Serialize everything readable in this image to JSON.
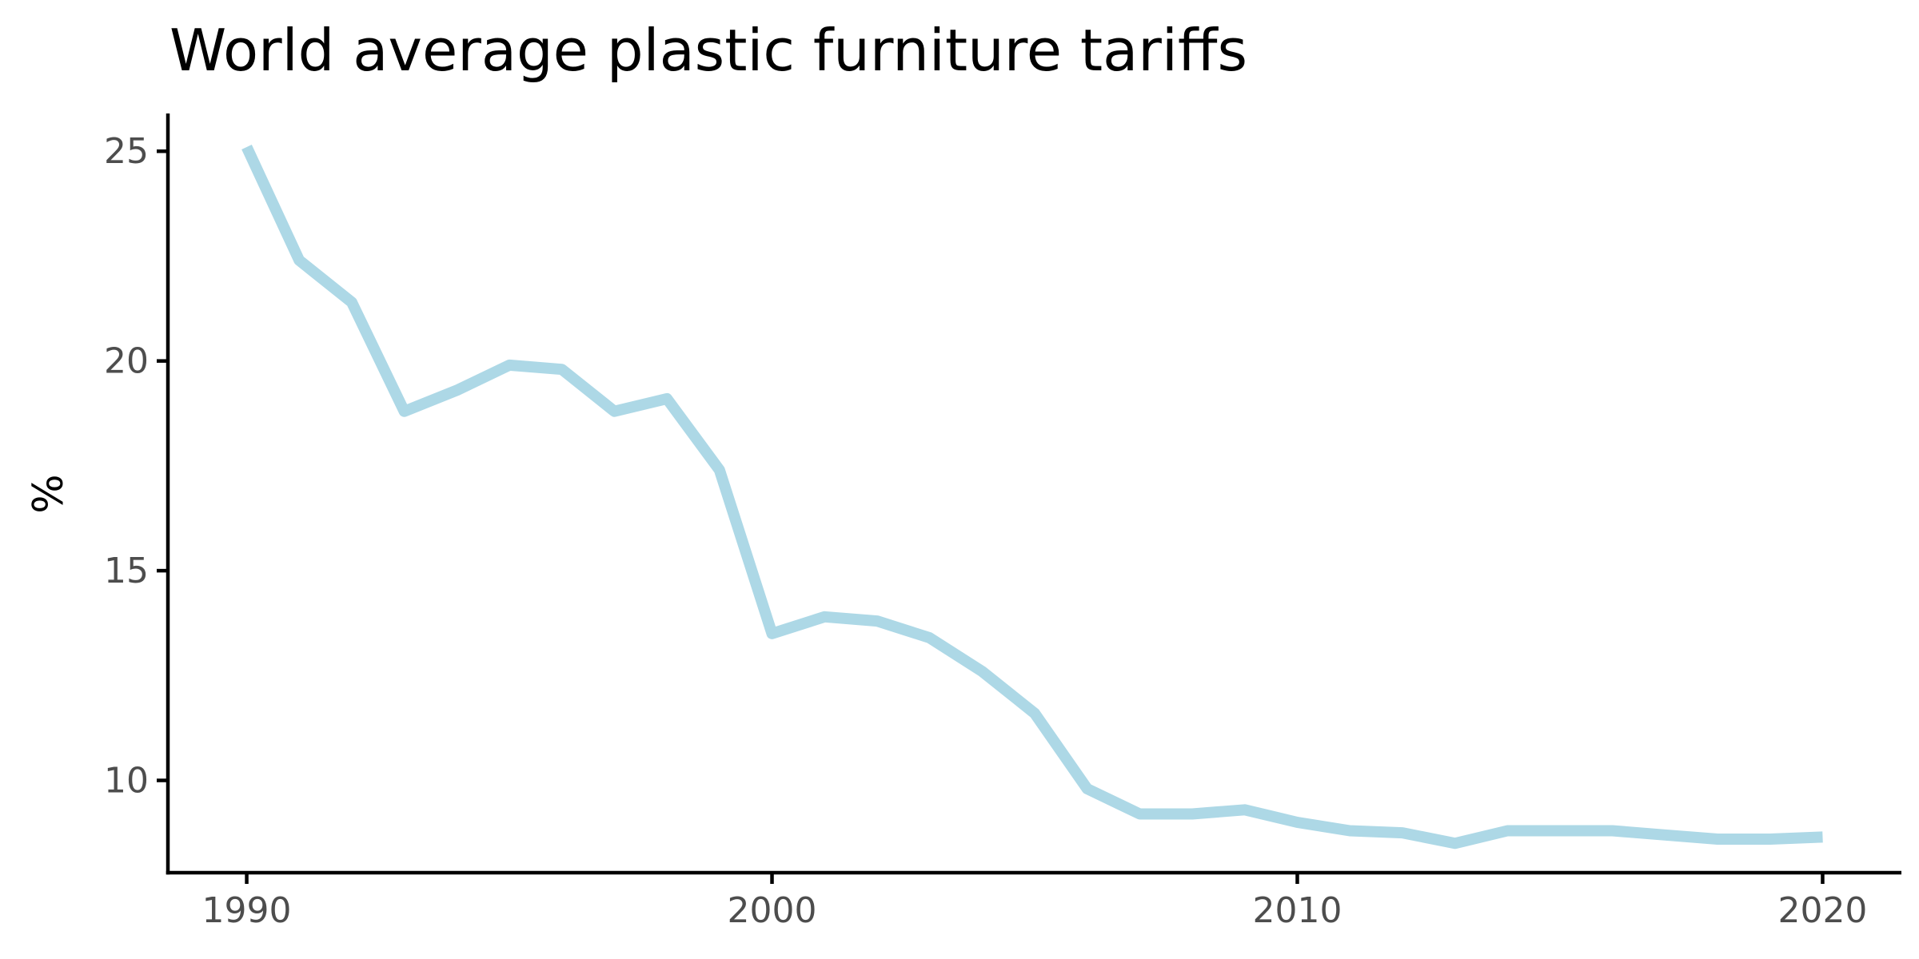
{
  "chart_data": {
    "type": "line",
    "title": "World average plastic furniture tariffs",
    "xlabel": "",
    "ylabel": "%",
    "xlim": [
      1988.5,
      2021.5
    ],
    "ylim": [
      7.8,
      25.9
    ],
    "x_ticks": [
      1990,
      2000,
      2010,
      2020
    ],
    "y_ticks": [
      10,
      15,
      20,
      25
    ],
    "grid": false,
    "legend": "none",
    "series": [
      {
        "color": "#add8e6",
        "x": [
          1990,
          1991,
          1992,
          1993,
          1994,
          1995,
          1996,
          1997,
          1998,
          1999,
          2000,
          2001,
          2002,
          2003,
          2004,
          2005,
          2006,
          2007,
          2008,
          2009,
          2010,
          2011,
          2012,
          2013,
          2014,
          2015,
          2016,
          2017,
          2018,
          2019,
          2020
        ],
        "y": [
          25.1,
          22.4,
          21.4,
          18.8,
          19.3,
          19.9,
          19.8,
          18.8,
          19.1,
          17.4,
          13.5,
          13.9,
          13.8,
          13.4,
          12.6,
          11.6,
          9.8,
          9.2,
          9.2,
          9.3,
          9.0,
          8.8,
          8.75,
          8.5,
          8.8,
          8.8,
          8.8,
          8.7,
          8.6,
          8.6,
          8.65
        ]
      }
    ]
  }
}
